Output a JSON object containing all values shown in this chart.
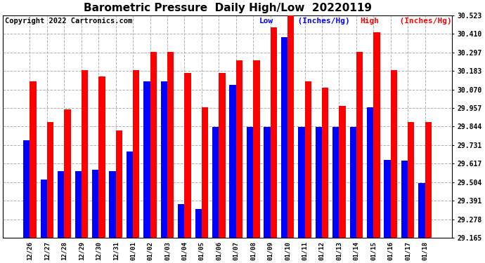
{
  "title": "Barometric Pressure  Daily High/Low  20220119",
  "copyright": "Copyright 2022 Cartronics.com",
  "categories": [
    "12/26",
    "12/27",
    "12/28",
    "12/29",
    "12/30",
    "12/31",
    "01/01",
    "01/02",
    "01/03",
    "01/04",
    "01/05",
    "01/06",
    "01/07",
    "01/08",
    "01/09",
    "01/10",
    "01/11",
    "01/12",
    "01/13",
    "01/14",
    "01/15",
    "01/16",
    "01/17",
    "01/18"
  ],
  "high_values": [
    30.12,
    29.87,
    29.95,
    30.19,
    30.15,
    29.82,
    30.19,
    30.3,
    30.3,
    30.17,
    29.96,
    30.17,
    30.25,
    30.25,
    30.45,
    30.523,
    30.12,
    30.08,
    29.97,
    30.3,
    30.42,
    30.19,
    29.87,
    29.87
  ],
  "low_values": [
    29.76,
    29.52,
    29.57,
    29.57,
    29.58,
    29.57,
    29.69,
    30.12,
    30.12,
    29.37,
    29.34,
    29.84,
    30.1,
    29.84,
    29.84,
    30.39,
    29.84,
    29.84,
    29.84,
    29.84,
    29.96,
    29.64,
    29.635,
    29.5
  ],
  "ylim_min": 29.165,
  "ylim_max": 30.523,
  "yticks": [
    29.165,
    29.278,
    29.391,
    29.504,
    29.617,
    29.731,
    29.844,
    29.957,
    30.07,
    30.183,
    30.297,
    30.41,
    30.523
  ],
  "high_color": "#ff0000",
  "low_color": "#0000ff",
  "bg_color": "#ffffff",
  "grid_color": "#b0b0b0",
  "title_fontsize": 11,
  "copyright_fontsize": 7.5,
  "legend_fontsize": 8,
  "bar_width": 0.38,
  "tick_fontsize": 7,
  "xtick_fontsize": 6.5
}
